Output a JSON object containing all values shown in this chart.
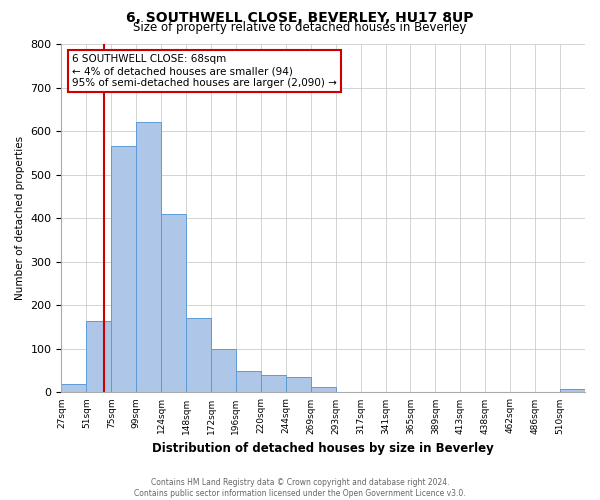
{
  "title": "6, SOUTHWELL CLOSE, BEVERLEY, HU17 8UP",
  "subtitle": "Size of property relative to detached houses in Beverley",
  "xlabel": "Distribution of detached houses by size in Beverley",
  "ylabel": "Number of detached properties",
  "bin_labels": [
    "27sqm",
    "51sqm",
    "75sqm",
    "99sqm",
    "124sqm",
    "148sqm",
    "172sqm",
    "196sqm",
    "220sqm",
    "244sqm",
    "269sqm",
    "293sqm",
    "317sqm",
    "341sqm",
    "365sqm",
    "389sqm",
    "413sqm",
    "438sqm",
    "462sqm",
    "486sqm",
    "510sqm"
  ],
  "bar_heights": [
    20,
    165,
    565,
    620,
    410,
    170,
    100,
    50,
    40,
    35,
    13,
    0,
    0,
    0,
    0,
    0,
    0,
    0,
    0,
    0,
    8
  ],
  "bar_color": "#aec6e8",
  "bar_edge_color": "#5b9bd5",
  "ylim": [
    0,
    800
  ],
  "yticks": [
    0,
    100,
    200,
    300,
    400,
    500,
    600,
    700,
    800
  ],
  "annotation_title": "6 SOUTHWELL CLOSE: 68sqm",
  "annotation_line1": "← 4% of detached houses are smaller (94)",
  "annotation_line2": "95% of semi-detached houses are larger (2,090) →",
  "annotation_box_color": "#ffffff",
  "annotation_box_edgecolor": "#cc0000",
  "red_line_color": "#cc0000",
  "footer_line1": "Contains HM Land Registry data © Crown copyright and database right 2024.",
  "footer_line2": "Contains public sector information licensed under the Open Government Licence v3.0.",
  "background_color": "#ffffff",
  "grid_color": "#cccccc",
  "property_sqm": 68,
  "bin_start_sqm": [
    27,
    51,
    75,
    99,
    124,
    148,
    172,
    196,
    220,
    244,
    269,
    293,
    317,
    341,
    365,
    389,
    413,
    438,
    462,
    486,
    510
  ]
}
